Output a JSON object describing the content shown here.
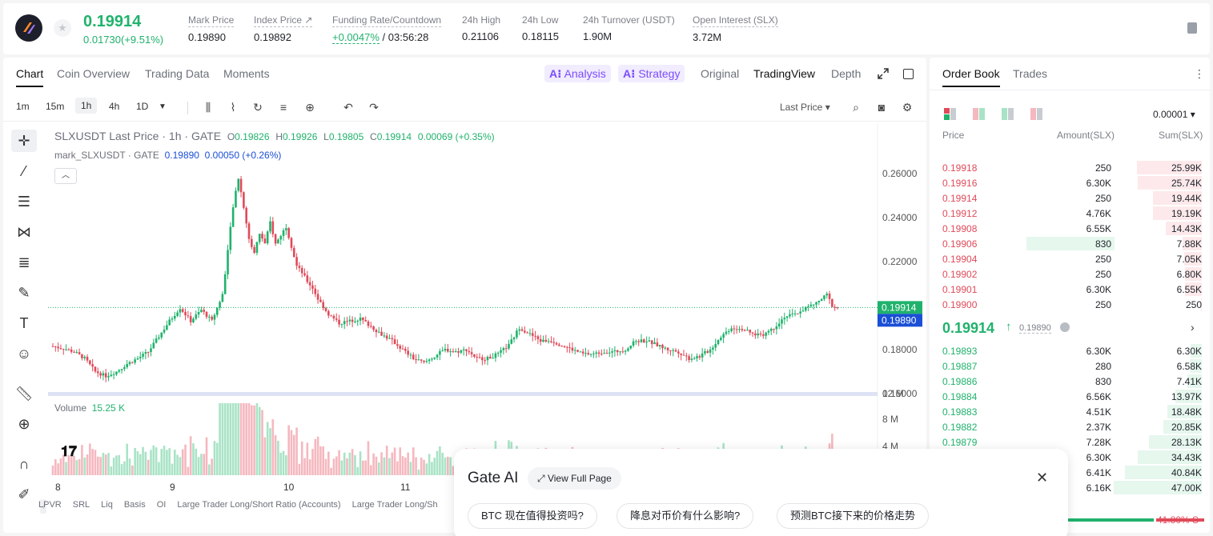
{
  "ticker": {
    "last_price": "0.19914",
    "change": "0.01730(+9.51%)",
    "stats": [
      {
        "label": "Mark Price",
        "value": "0.19890"
      },
      {
        "label": "Index Price ↗",
        "value": "0.19892"
      },
      {
        "label": "Funding Rate/Countdown",
        "value_up": "+0.0047%",
        "value": " / 03:56:28"
      },
      {
        "label": "24h High",
        "value": "0.21106"
      },
      {
        "label": "24h Low",
        "value": "0.18115"
      },
      {
        "label": "24h Turnover (USDT)",
        "value": "1.90M"
      },
      {
        "label": "Open Interest (SLX)",
        "value": "3.72M"
      }
    ]
  },
  "chart_tabs": [
    "Chart",
    "Coin Overview",
    "Trading Data",
    "Moments"
  ],
  "ai_tags": [
    "Analysis",
    "Strategy"
  ],
  "view_tabs": [
    "Original",
    "TradingView",
    "Depth"
  ],
  "timeframes": [
    "1m",
    "15m",
    "1h",
    "4h",
    "1D"
  ],
  "price_type": "Last Price",
  "legend": {
    "symbol": "SLXUSDT Last Price",
    "interval": "1h",
    "exchange": "GATE",
    "o": "0.19826",
    "h": "0.19926",
    "l": "0.19805",
    "c": "0.19914",
    "chg": "0.00069 (+0.35%)",
    "mark_name": "mark_SLXUSDT · GATE",
    "mark_val": "0.19890",
    "mark_chg": "0.00050 (+0.26%)"
  },
  "volume_legend": {
    "label": "Volume",
    "value": "15.25 K"
  },
  "indicators": [
    "LPVR",
    "SRL",
    "Liq",
    "Basis",
    "OI",
    "Large Trader Long/Short Ratio (Accounts)",
    "Large Trader Long/Sh"
  ],
  "colors": {
    "up": "#20b26c",
    "down": "#e04a59",
    "mark": "#1a4fd6"
  },
  "chart_data": {
    "type": "candlestick",
    "y_ticks": [
      "0.26000",
      "0.24000",
      "0.22000",
      "0.20000",
      "0.18000",
      "0.16000"
    ],
    "ylim": [
      0.16,
      0.26
    ],
    "vol_ticks": [
      "12 M",
      "8 M",
      "4 M"
    ],
    "x_labels": [
      "8",
      "9",
      "10",
      "11"
    ],
    "last_price_tag": "0.19914",
    "mark_price_tag": "0.19890",
    "close_path": [
      [
        0,
        0.1815
      ],
      [
        4,
        0.1805
      ],
      [
        8,
        0.179
      ],
      [
        12,
        0.176
      ],
      [
        16,
        0.17
      ],
      [
        20,
        0.168
      ],
      [
        24,
        0.17
      ],
      [
        28,
        0.1735
      ],
      [
        32,
        0.176
      ],
      [
        36,
        0.179
      ],
      [
        40,
        0.186
      ],
      [
        44,
        0.193
      ],
      [
        48,
        0.199
      ],
      [
        52,
        0.193
      ],
      [
        56,
        0.198
      ],
      [
        60,
        0.193
      ],
      [
        64,
        0.205
      ],
      [
        66,
        0.225
      ],
      [
        68,
        0.245
      ],
      [
        70,
        0.258
      ],
      [
        72,
        0.245
      ],
      [
        74,
        0.23
      ],
      [
        76,
        0.224
      ],
      [
        78,
        0.233
      ],
      [
        80,
        0.228
      ],
      [
        82,
        0.238
      ],
      [
        84,
        0.228
      ],
      [
        86,
        0.232
      ],
      [
        88,
        0.236
      ],
      [
        90,
        0.227
      ],
      [
        92,
        0.218
      ],
      [
        94,
        0.215
      ],
      [
        96,
        0.211
      ],
      [
        98,
        0.208
      ],
      [
        100,
        0.203
      ],
      [
        104,
        0.196
      ],
      [
        108,
        0.192
      ],
      [
        112,
        0.193
      ],
      [
        116,
        0.194
      ],
      [
        120,
        0.1905
      ],
      [
        124,
        0.187
      ],
      [
        128,
        0.184
      ],
      [
        132,
        0.18
      ],
      [
        136,
        0.176
      ],
      [
        140,
        0.174
      ],
      [
        144,
        0.177
      ],
      [
        148,
        0.18
      ],
      [
        152,
        0.179
      ],
      [
        156,
        0.18
      ],
      [
        160,
        0.176
      ],
      [
        164,
        0.176
      ],
      [
        168,
        0.178
      ],
      [
        172,
        0.182
      ],
      [
        176,
        0.19
      ],
      [
        180,
        0.187
      ],
      [
        184,
        0.184
      ],
      [
        188,
        0.184
      ],
      [
        192,
        0.182
      ],
      [
        196,
        0.18
      ],
      [
        200,
        0.178
      ],
      [
        204,
        0.178
      ],
      [
        208,
        0.179
      ],
      [
        212,
        0.179
      ],
      [
        216,
        0.18
      ],
      [
        220,
        0.184
      ],
      [
        224,
        0.184
      ],
      [
        228,
        0.182
      ],
      [
        232,
        0.18
      ],
      [
        236,
        0.179
      ],
      [
        240,
        0.176
      ],
      [
        244,
        0.177
      ],
      [
        248,
        0.18
      ],
      [
        252,
        0.186
      ],
      [
        256,
        0.19
      ],
      [
        260,
        0.1895
      ],
      [
        264,
        0.187
      ],
      [
        268,
        0.187
      ],
      [
        272,
        0.19
      ],
      [
        276,
        0.195
      ],
      [
        280,
        0.196
      ],
      [
        284,
        0.199
      ],
      [
        288,
        0.201
      ],
      [
        292,
        0.205
      ],
      [
        294,
        0.2
      ],
      [
        296,
        0.1991
      ]
    ]
  },
  "gate_ai": {
    "title": "Gate AI",
    "view_full": "View Full Page",
    "questions": [
      "BTC 现在值得投资吗?",
      "降息对币价有什么影响?",
      "预测BTC接下来的价格走势"
    ]
  },
  "book": {
    "tabs": [
      "Order Book",
      "Trades"
    ],
    "precision": "0.00001",
    "headers": [
      "Price",
      "Amount(SLX)",
      "Sum(SLX)"
    ],
    "asks": [
      {
        "price": "0.19918",
        "amount": "250",
        "sum": "25.99K",
        "depth": 0.74
      },
      {
        "price": "0.19916",
        "amount": "6.30K",
        "sum": "25.74K",
        "depth": 0.73
      },
      {
        "price": "0.19914",
        "amount": "250",
        "sum": "19.44K",
        "depth": 0.55
      },
      {
        "price": "0.19912",
        "amount": "4.76K",
        "sum": "19.19K",
        "depth": 0.55
      },
      {
        "price": "0.19908",
        "amount": "6.55K",
        "sum": "14.43K",
        "depth": 0.41
      },
      {
        "price": "0.19906",
        "amount": "830",
        "sum": "7.88K",
        "depth": 0.22
      },
      {
        "price": "0.19904",
        "amount": "250",
        "sum": "7.05K",
        "depth": 0.2
      },
      {
        "price": "0.19902",
        "amount": "250",
        "sum": "6.80K",
        "depth": 0.19
      },
      {
        "price": "0.19901",
        "amount": "6.30K",
        "sum": "6.55K",
        "depth": 0.19
      },
      {
        "price": "0.19900",
        "amount": "250",
        "sum": "250",
        "depth": 0.01
      }
    ],
    "mid_price": "0.19914",
    "mid_mark": "0.19890",
    "bids": [
      {
        "price": "0.19893",
        "amount": "6.30K",
        "sum": "6.30K",
        "depth": 0.13
      },
      {
        "price": "0.19887",
        "amount": "280",
        "sum": "6.58K",
        "depth": 0.14
      },
      {
        "price": "0.19886",
        "amount": "830",
        "sum": "7.41K",
        "depth": 0.16
      },
      {
        "price": "0.19884",
        "amount": "6.56K",
        "sum": "13.97K",
        "depth": 0.3
      },
      {
        "price": "0.19883",
        "amount": "4.51K",
        "sum": "18.48K",
        "depth": 0.39
      },
      {
        "price": "0.19882",
        "amount": "2.37K",
        "sum": "20.85K",
        "depth": 0.44
      },
      {
        "price": "0.19879",
        "amount": "7.28K",
        "sum": "28.13K",
        "depth": 0.6
      },
      {
        "price": "",
        "amount": "6.30K",
        "sum": "34.43K",
        "depth": 0.73
      },
      {
        "price": "",
        "amount": "6.41K",
        "sum": "40.84K",
        "depth": 0.87
      },
      {
        "price": "",
        "amount": "6.16K",
        "sum": "47.00K",
        "depth": 1.0
      }
    ],
    "ratio_sell": "41.80% S"
  }
}
